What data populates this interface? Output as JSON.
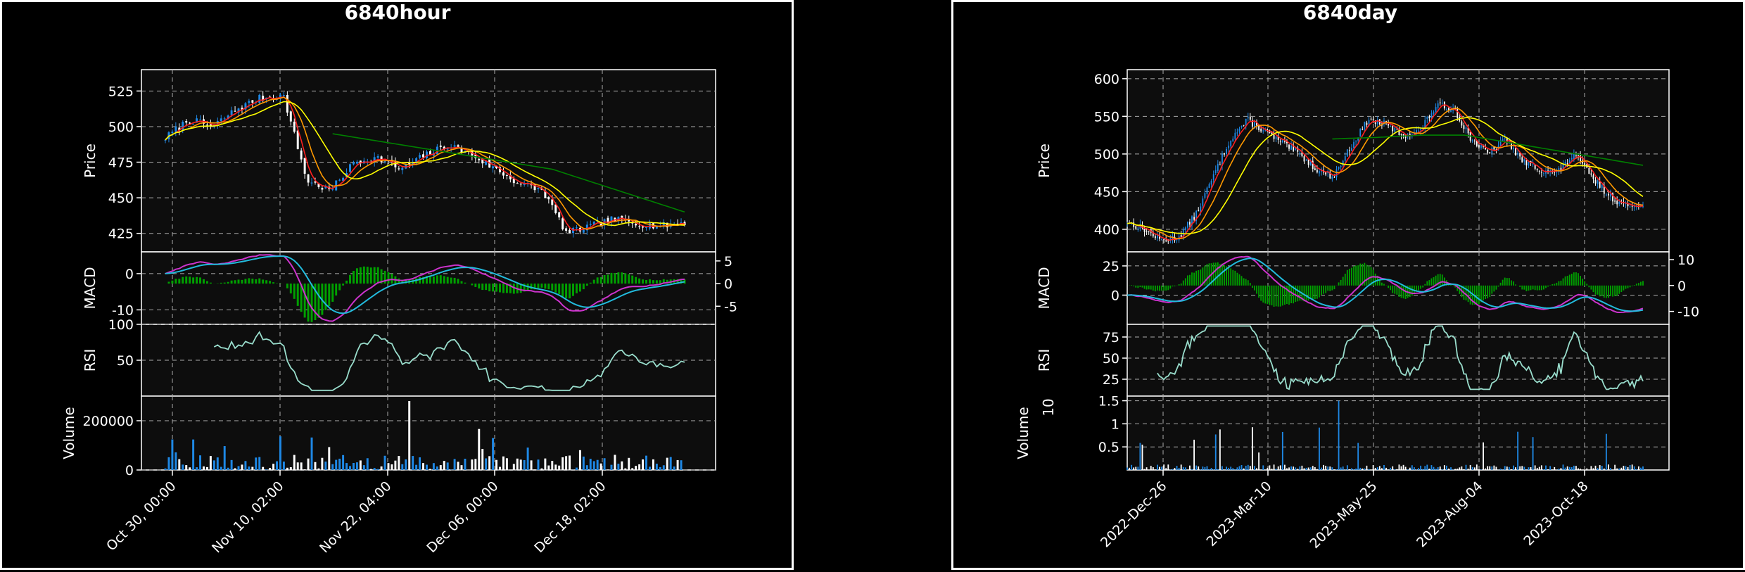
{
  "charts": {
    "left": {
      "title": "6840hour",
      "panels": {
        "price": {
          "ylabel": "Price",
          "ylim": [
            412,
            540
          ],
          "ticks": [
            425,
            450,
            475,
            500,
            525
          ]
        },
        "macd": {
          "ylabel": "MACD",
          "ylim": [
            -14,
            6
          ],
          "ticks": [
            0,
            -10
          ],
          "right_ticks": [
            5,
            0,
            -5
          ]
        },
        "rsi": {
          "ylabel": "RSI",
          "ylim": [
            0,
            100
          ],
          "ticks": [
            100,
            50
          ]
        },
        "volume": {
          "ylabel": "Volume",
          "ylim": [
            0,
            300000
          ],
          "ticks": [
            0,
            200000
          ]
        }
      },
      "xticks": [
        "Oct 30, 00:00",
        "Nov 10, 02:00",
        "Nov 22, 04:00",
        "Dec 06, 00:00",
        "Dec 18, 02:00"
      ]
    },
    "right": {
      "title": "6840day",
      "panels": {
        "price": {
          "ylabel": "Price",
          "ylim": [
            370,
            612
          ],
          "ticks": [
            400,
            450,
            500,
            550,
            600
          ]
        },
        "macd": {
          "ylabel": "MACD",
          "ylim": [
            -25,
            37
          ],
          "ticks": [
            25,
            0
          ],
          "right_ticks": [
            10,
            0,
            -10
          ]
        },
        "rsi": {
          "ylabel": "RSI",
          "ylim": [
            5,
            90
          ],
          "ticks": [
            75,
            50,
            25
          ]
        },
        "volume": {
          "ylabel": "Volume",
          "multiplier": "10",
          "exponent": "6",
          "ylim": [
            0,
            1.6
          ],
          "ticks": [
            1.5,
            1.0,
            0.5
          ]
        }
      },
      "xticks": [
        "2022-Dec-26",
        "2023-Mar-10",
        "2023-May-25",
        "2023-Aug-04",
        "2023-Oct-18"
      ]
    }
  },
  "chart_data": [
    {
      "type": "line",
      "title": "6840hour",
      "ylabel": "Price",
      "x_labels": [
        "Oct 30, 00:00",
        "Nov 10, 02:00",
        "Nov 22, 04:00",
        "Dec 06, 00:00",
        "Dec 18, 02:00"
      ],
      "close_approx": [
        492,
        505,
        500,
        512,
        520,
        522,
        462,
        455,
        475,
        478,
        470,
        480,
        487,
        480,
        470,
        460,
        455,
        425,
        430,
        435,
        432,
        430,
        433
      ],
      "ma_long_approx": [
        495,
        490,
        485,
        480,
        475,
        470,
        460,
        450,
        440
      ],
      "macd_ylim": [
        -14,
        6
      ],
      "rsi_range": [
        0,
        100
      ],
      "volume_ylim": [
        0,
        300000
      ],
      "volume_peak": 280000,
      "colors": {
        "up": "#1e88e5",
        "down": "#ffffff",
        "ma_fast": "#ff2020",
        "ma_mid": "#ff9900",
        "ma_slow": "#ffff00",
        "ma_long": "#008000",
        "macd": "#cc33cc",
        "signal": "#22bbdd",
        "hist": "#00a000",
        "rsi": "#99ddcc"
      }
    },
    {
      "type": "line",
      "title": "6840day",
      "ylabel": "Price",
      "x_labels": [
        "2022-Dec-26",
        "2023-Mar-10",
        "2023-May-25",
        "2023-Aug-04",
        "2023-Oct-18"
      ],
      "close_approx": [
        410,
        400,
        385,
        390,
        420,
        470,
        520,
        545,
        530,
        515,
        500,
        480,
        470,
        510,
        545,
        540,
        525,
        530,
        565,
        560,
        520,
        500,
        520,
        490,
        480,
        475,
        500,
        470,
        445,
        430,
        435
      ],
      "ma_long_approx": [
        520,
        522,
        525,
        525,
        515,
        505,
        495,
        485
      ],
      "macd_ylim": [
        -25,
        37
      ],
      "rsi_range": [
        5,
        90
      ],
      "volume_ylim_millions": [
        0,
        1.6
      ],
      "volume_peak_millions": 1.5,
      "colors": {
        "up": "#1e88e5",
        "down": "#ffffff",
        "ma_fast": "#ff2020",
        "ma_mid": "#ff9900",
        "ma_slow": "#ffff00",
        "ma_long": "#008000",
        "macd": "#cc33cc",
        "signal": "#22bbdd",
        "hist": "#00a000",
        "rsi": "#99ddcc"
      }
    }
  ]
}
